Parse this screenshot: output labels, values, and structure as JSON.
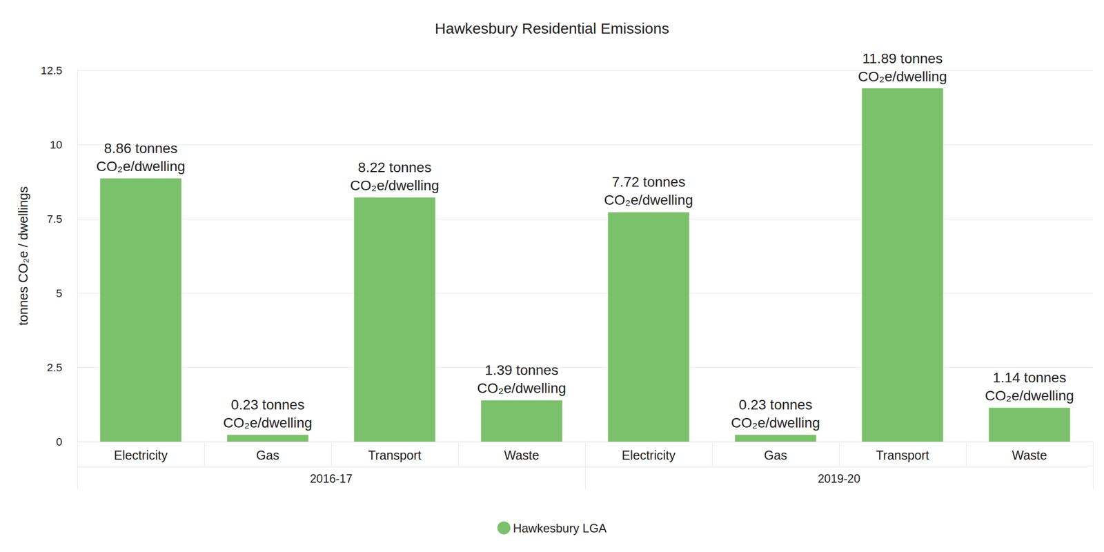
{
  "chart_data": {
    "type": "bar",
    "title": "Hawkesbury Residential Emissions",
    "y_label": "tonnes CO₂e / dwellings",
    "categories": [
      "Electricity",
      "Gas",
      "Transport",
      "Waste",
      "Electricity",
      "Gas",
      "Transport",
      "Waste"
    ],
    "x_groups": [
      {
        "label": "2016-17",
        "count": 4
      },
      {
        "label": "2019-20",
        "count": 4
      }
    ],
    "series": [
      {
        "name": "Hawkesbury LGA",
        "color": "#7bc06b",
        "values": [
          8.86,
          0.23,
          8.22,
          1.39,
          7.72,
          0.23,
          11.89,
          1.14
        ],
        "value_labels": [
          "8.86 tonnes\nCO₂e/dwelling",
          "0.23 tonnes\nCO₂e/dwelling",
          "8.22 tonnes\nCO₂e/dwelling",
          "1.39 tonnes\nCO₂e/dwelling",
          "7.72 tonnes\nCO₂e/dwelling",
          "0.23 tonnes\nCO₂e/dwelling",
          "11.89 tonnes\nCO₂e/dwelling",
          "1.14 tonnes\nCO₂e/dwelling"
        ]
      }
    ],
    "ylim": [
      0,
      12.5
    ],
    "yticks": [
      0,
      2.5,
      5,
      7.5,
      10,
      12.5
    ],
    "grid": true,
    "legend": "bottom",
    "data_labels": true
  }
}
